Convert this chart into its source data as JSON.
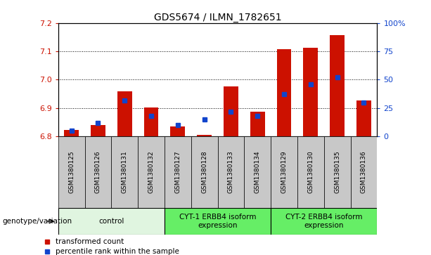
{
  "title": "GDS5674 / ILMN_1782651",
  "samples": [
    "GSM1380125",
    "GSM1380126",
    "GSM1380131",
    "GSM1380132",
    "GSM1380127",
    "GSM1380128",
    "GSM1380133",
    "GSM1380134",
    "GSM1380129",
    "GSM1380130",
    "GSM1380135",
    "GSM1380136"
  ],
  "red_values": [
    6.822,
    6.84,
    6.96,
    6.902,
    6.834,
    6.805,
    6.977,
    6.886,
    7.107,
    7.112,
    7.157,
    6.928
  ],
  "blue_pct": [
    5,
    12,
    32,
    18,
    10,
    15,
    22,
    18,
    37,
    46,
    52,
    30
  ],
  "ylim_left": [
    6.8,
    7.2
  ],
  "ylim_right": [
    0,
    100
  ],
  "yticks_left": [
    6.8,
    6.9,
    7.0,
    7.1,
    7.2
  ],
  "yticks_right": [
    0,
    25,
    50,
    75,
    100
  ],
  "ytick_labels_right": [
    "0",
    "25",
    "50",
    "75",
    "100%"
  ],
  "bar_bottom": 6.8,
  "red_color": "#cc1100",
  "blue_color": "#1144cc",
  "bar_width": 0.55,
  "control_color": "#e8f5e8",
  "cyt_color": "#77ee77",
  "sample_bg_color": "#c8c8c8",
  "legend_red_label": "transformed count",
  "legend_blue_label": "percentile rank within the sample",
  "genotype_label": "genotype/variation",
  "group_starts": [
    0,
    4,
    8
  ],
  "group_ends": [
    4,
    8,
    12
  ],
  "group_labels": [
    "control",
    "CYT-1 ERBB4 isoform\nexpression",
    "CYT-2 ERBB4 isoform\nexpression"
  ],
  "group_colors": [
    "#e0f5e0",
    "#66ee66",
    "#66ee66"
  ]
}
